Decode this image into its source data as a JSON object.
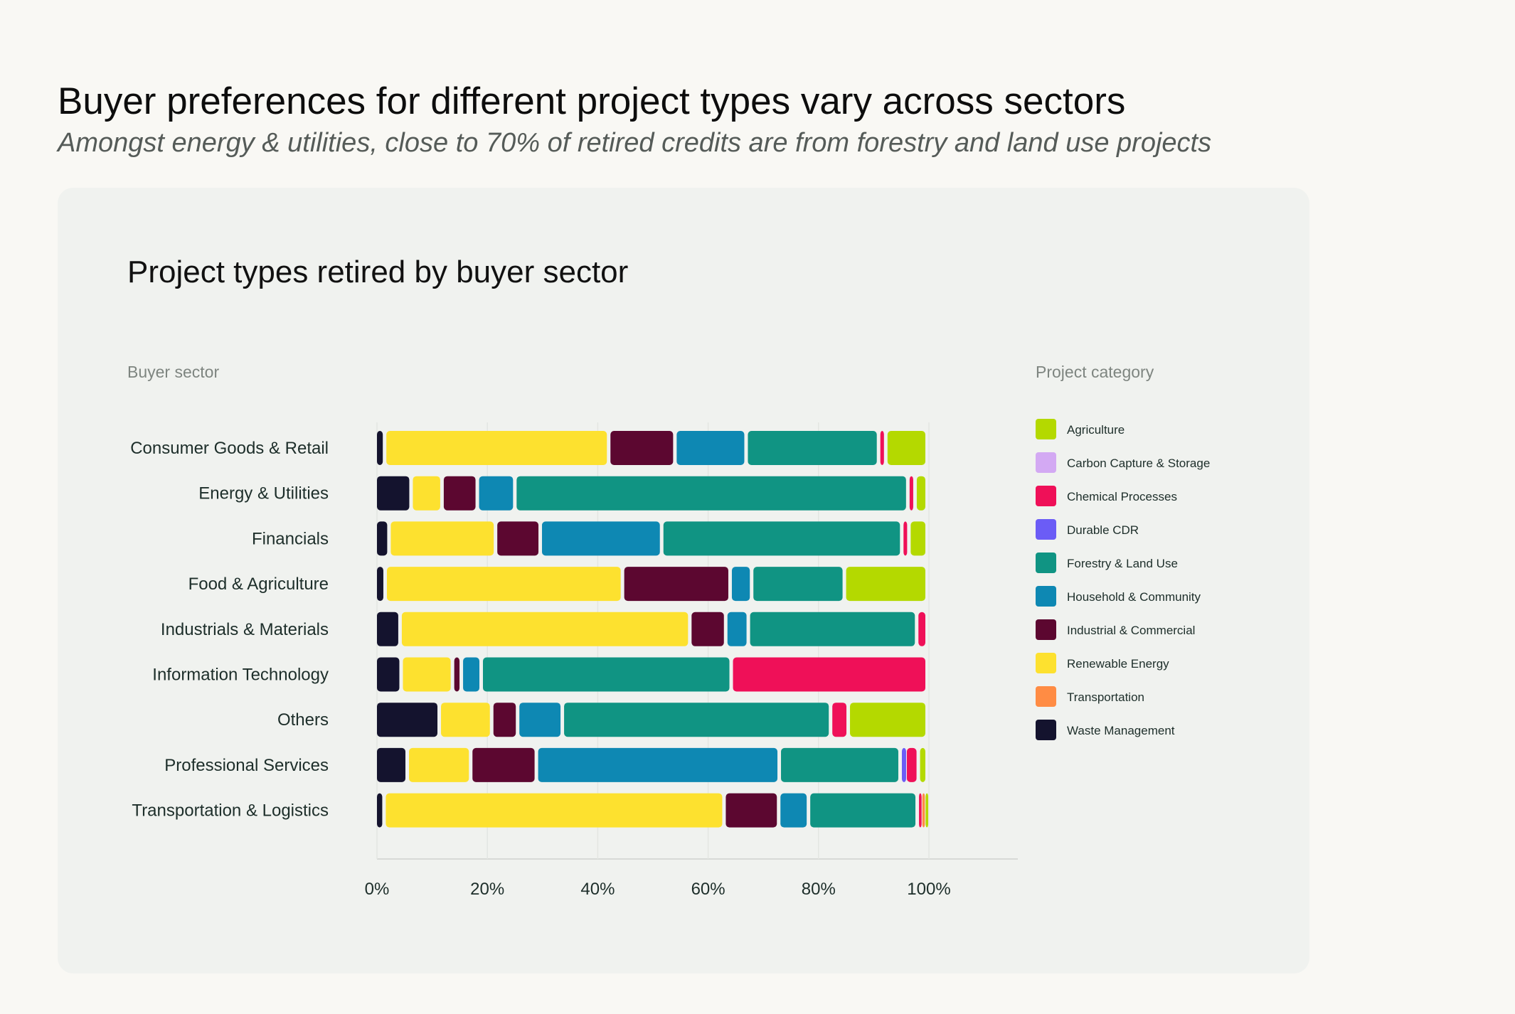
{
  "header": {
    "title": "Buyer preferences for different project types vary across sectors",
    "subtitle": "Amongst energy & utilities, close to 70% of retired credits are from forestry and land use projects"
  },
  "colors": {
    "Agriculture": "#b4d900",
    "Carbon Capture & Storage": "#d3a9f3",
    "Chemical Processes": "#ef1058",
    "Durable CDR": "#6b5cf6",
    "Forestry & Land Use": "#109483",
    "Household & Community": "#0e88b3",
    "Industrial & Commercial": "#5c0730",
    "Renewable Energy": "#fde12f",
    "Transportation": "#ff8c44",
    "Waste Management": "#14132e"
  },
  "chart_data": {
    "type": "bar",
    "orientation": "horizontal",
    "stacked": true,
    "title": "Project types retired by buyer sector",
    "ylabel": "Buyer sector",
    "legend_title": "Project category",
    "legend_position": "right",
    "xlim": [
      0,
      115
    ],
    "x_ticks": [
      "0%",
      "20%",
      "40%",
      "60%",
      "80%",
      "100%"
    ],
    "x_tick_values": [
      0,
      20,
      40,
      60,
      80,
      100
    ],
    "categories": [
      "Consumer Goods & Retail",
      "Energy & Utilities",
      "Financials",
      "Food & Agriculture",
      "Industrials & Materials",
      "Information Technology",
      "Others",
      "Professional Services",
      "Transportation & Logistics"
    ],
    "legend": [
      "Agriculture",
      "Carbon Capture & Storage",
      "Chemical Processes",
      "Durable CDR",
      "Forestry & Land Use",
      "Household & Community",
      "Industrial & Commercial",
      "Renewable Energy",
      "Transportation",
      "Waste Management"
    ],
    "stack_order": [
      "Waste Management",
      "Renewable Energy",
      "Industrial & Commercial",
      "Household & Community",
      "Forestry & Land Use",
      "Durable CDR",
      "Carbon Capture & Storage",
      "Chemical Processes",
      "Transportation",
      "Agriculture"
    ],
    "series": [
      {
        "name": "Waste Management",
        "values": [
          1.7,
          6.5,
          2.5,
          1.8,
          4.5,
          4.7,
          11.6,
          5.8,
          1.6
        ]
      },
      {
        "name": "Renewable Energy",
        "values": [
          40.6,
          5.6,
          19.3,
          43.0,
          52.5,
          9.3,
          9.5,
          11.5,
          61.6
        ]
      },
      {
        "name": "Industrial & Commercial",
        "values": [
          12.0,
          6.4,
          8.1,
          19.5,
          6.5,
          1.6,
          4.7,
          11.9,
          9.9
        ]
      },
      {
        "name": "Household & Community",
        "values": [
          12.9,
          6.8,
          22.0,
          3.9,
          4.1,
          3.6,
          8.1,
          44.0,
          5.4
        ]
      },
      {
        "name": "Forestry & Land Use",
        "values": [
          24.0,
          71.2,
          43.5,
          16.8,
          30.5,
          45.3,
          48.6,
          21.9,
          19.7
        ]
      },
      {
        "name": "Durable CDR",
        "values": [
          0,
          0,
          0,
          0,
          0,
          0,
          0,
          0.9,
          0
        ]
      },
      {
        "name": "Carbon Capture & Storage",
        "values": [
          0,
          0,
          0,
          0,
          0,
          0,
          0,
          0,
          0
        ]
      },
      {
        "name": "Chemical Processes",
        "values": [
          1.3,
          1.3,
          1.3,
          0,
          1.9,
          35.5,
          3.2,
          2.4,
          0.6
        ]
      },
      {
        "name": "Transportation",
        "values": [
          0,
          0,
          0,
          0,
          0,
          0,
          0,
          0,
          0.6
        ]
      },
      {
        "name": "Agriculture",
        "values": [
          7.5,
          2.2,
          3.3,
          15.0,
          0,
          0,
          14.3,
          1.6,
          0.6
        ]
      }
    ]
  }
}
